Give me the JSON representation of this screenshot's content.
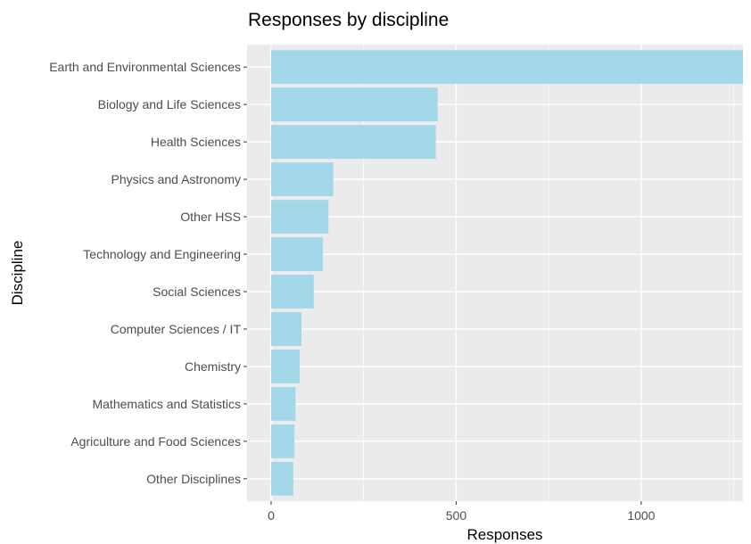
{
  "chart_data": {
    "type": "bar",
    "orientation": "horizontal",
    "title": "Responses by discipline",
    "xlabel": "Responses",
    "ylabel": "Discipline",
    "categories": [
      "Earth and Environmental Sciences",
      "Biology and Life Sciences",
      "Health Sciences",
      "Physics and Astronomy",
      "Other HSS",
      "Technology and Engineering",
      "Social Sciences",
      "Computer Sciences / IT",
      "Chemistry",
      "Mathematics and Statistics",
      "Agriculture and Food Sciences",
      "Other Disciplines"
    ],
    "values": [
      1275,
      450,
      445,
      168,
      155,
      140,
      115,
      82,
      77,
      66,
      63,
      60
    ],
    "xlim": [
      -65,
      1275
    ],
    "xticks": [
      0,
      500,
      1000
    ],
    "xtick_labels": [
      "0",
      "500",
      "1000"
    ],
    "grid": true,
    "legend": "none",
    "colors": {
      "bar": "#a3d8e8",
      "panel": "#ebebeb",
      "grid": "#ffffff",
      "tick_text": "#4d4d4d"
    }
  }
}
